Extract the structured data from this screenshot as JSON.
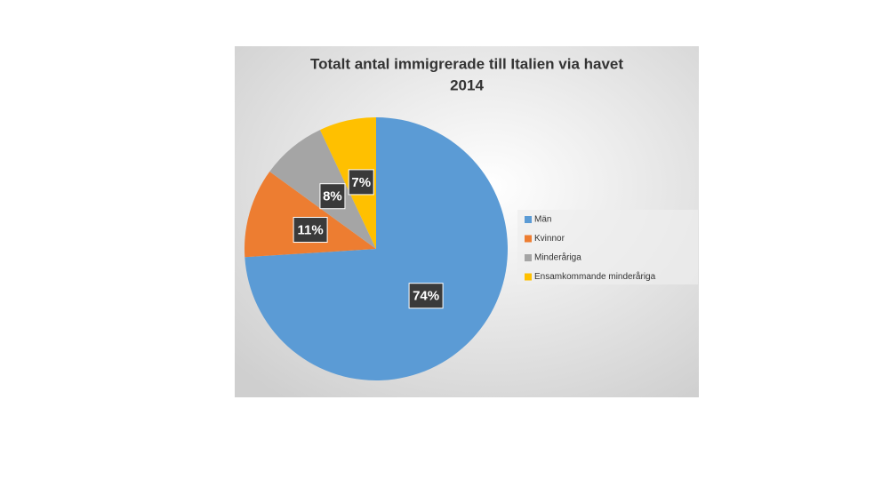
{
  "chart_data": {
    "type": "pie",
    "title": [
      "Totalt antal immigrerade till Italien via havet",
      "2014"
    ],
    "categories": [
      "Män",
      "Kvinnor",
      "Minderåriga",
      "Ensamkommande minderåriga"
    ],
    "values": [
      74,
      11,
      8,
      7
    ],
    "value_labels": [
      "74%",
      "11%",
      "8%",
      "7%"
    ],
    "colors": [
      "#5b9bd5",
      "#ed7d31",
      "#a5a5a5",
      "#ffc000"
    ],
    "legend": "right"
  }
}
